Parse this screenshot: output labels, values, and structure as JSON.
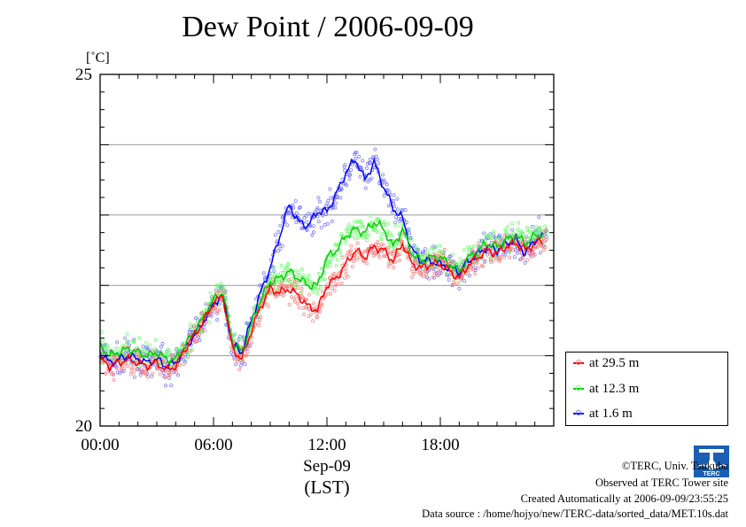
{
  "header": {
    "title": "Dew Point / 2006-09-09"
  },
  "chart_data": {
    "type": "line",
    "title": "Dew Point / 2006-09-09",
    "ylabel": "[˚C]",
    "xlabel": "Sep-09",
    "xlabel_sub": "(LST)",
    "ylim": [
      20,
      25
    ],
    "xlim": [
      0,
      24
    ],
    "y_ticks_labeled": [
      "20",
      "25"
    ],
    "y_ticks_labeled_values": [
      20,
      25
    ],
    "y_gridlines": [
      21,
      22,
      23,
      24
    ],
    "x_tick_labels": [
      "00:00",
      "06:00",
      "12:00",
      "18:00"
    ],
    "x_tick_values": [
      0,
      6,
      12,
      18
    ],
    "grid": "horizontal",
    "legend_position": "right",
    "x": [
      0,
      0.5,
      1,
      1.5,
      2,
      2.5,
      3,
      3.5,
      4,
      4.5,
      5,
      5.5,
      6,
      6.5,
      7,
      7.5,
      8,
      8.5,
      9,
      9.5,
      10,
      10.5,
      11,
      11.5,
      12,
      12.5,
      13,
      13.5,
      14,
      14.5,
      15,
      15.5,
      16,
      16.5,
      17,
      17.5,
      18,
      18.5,
      19,
      19.5,
      20,
      20.5,
      21,
      21.5,
      22,
      22.5,
      23,
      23.5
    ],
    "series": [
      {
        "name": "at 29.5 m",
        "color": "#ff0000",
        "scatter_color": "#ff7a7a",
        "values": [
          20.95,
          20.85,
          20.9,
          20.95,
          20.9,
          20.85,
          20.9,
          20.8,
          20.85,
          21.1,
          21.3,
          21.5,
          21.75,
          21.85,
          21.1,
          20.95,
          21.35,
          21.7,
          21.95,
          21.9,
          21.95,
          21.85,
          21.7,
          21.65,
          22.0,
          22.1,
          22.3,
          22.5,
          22.4,
          22.55,
          22.5,
          22.35,
          22.6,
          22.3,
          22.25,
          22.3,
          22.3,
          22.2,
          22.1,
          22.3,
          22.4,
          22.5,
          22.45,
          22.55,
          22.6,
          22.5,
          22.6,
          22.65
        ]
      },
      {
        "name": "at 12.3 m",
        "color": "#00cc00",
        "scatter_color": "#66ff66",
        "values": [
          21.15,
          21.0,
          21.05,
          21.1,
          21.05,
          21.0,
          21.05,
          20.95,
          20.95,
          21.15,
          21.35,
          21.55,
          21.8,
          21.9,
          21.2,
          21.05,
          21.45,
          21.8,
          22.05,
          22.1,
          22.2,
          22.1,
          22.0,
          22.0,
          22.4,
          22.5,
          22.7,
          22.8,
          22.75,
          22.9,
          22.8,
          22.55,
          22.8,
          22.45,
          22.35,
          22.4,
          22.4,
          22.3,
          22.2,
          22.4,
          22.5,
          22.6,
          22.55,
          22.65,
          22.7,
          22.6,
          22.7,
          22.75
        ]
      },
      {
        "name": "at 1.6 m",
        "color": "#0000ff",
        "scatter_color": "#6e6eff",
        "values": [
          21.05,
          20.9,
          20.95,
          21.0,
          20.95,
          20.9,
          20.95,
          20.85,
          20.9,
          21.1,
          21.3,
          21.5,
          21.75,
          21.85,
          21.15,
          21.05,
          21.5,
          21.9,
          22.25,
          22.7,
          23.15,
          22.9,
          22.85,
          23.05,
          23.05,
          23.3,
          23.6,
          23.8,
          23.5,
          23.75,
          23.4,
          23.1,
          22.95,
          22.5,
          22.35,
          22.35,
          22.3,
          22.25,
          22.2,
          22.35,
          22.45,
          22.55,
          22.5,
          22.6,
          22.65,
          22.45,
          22.65,
          22.7
        ]
      }
    ]
  },
  "footer": {
    "copyright": "©TERC, Univ. Tsukuba",
    "observed": "Observed at TERC Tower site",
    "created": "Created Automatically at 2006-09-09/23:55:25",
    "source": "Data source : /home/hojyo/new/TERC-data/sorted_data/MET.10s.dat",
    "logo_text": "TERC"
  }
}
